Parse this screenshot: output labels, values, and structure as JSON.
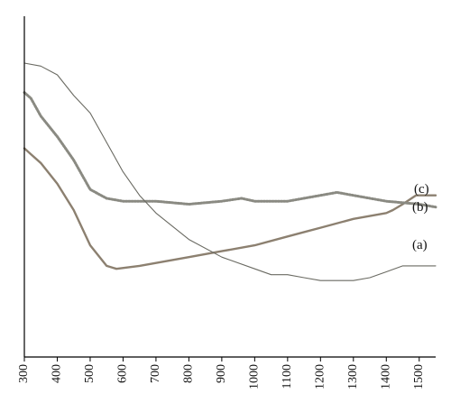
{
  "chart_data": {
    "type": "line",
    "title": "",
    "xlabel": "",
    "ylabel": "",
    "xlim": [
      300,
      1550
    ],
    "ylim": [
      0,
      1
    ],
    "grid": false,
    "legend": "none",
    "x_ticks": [
      300,
      400,
      500,
      600,
      700,
      800,
      900,
      1000,
      1100,
      1200,
      1300,
      1400,
      1500
    ],
    "x_tick_labels": [
      "300",
      "400",
      "500",
      "600",
      "700",
      "800",
      "900",
      "1000",
      "1100",
      "1200",
      "1300",
      "1400",
      "1500"
    ],
    "series": [
      {
        "name": "(a)",
        "color": "#8c8070",
        "style": "solid-thick",
        "x": [
          300,
          320,
          350,
          400,
          450,
          500,
          550,
          580,
          650,
          700,
          800,
          900,
          1000,
          1100,
          1200,
          1300,
          1400,
          1420,
          1450,
          1490,
          1550
        ],
        "y": [
          0.71,
          0.69,
          0.66,
          0.59,
          0.5,
          0.38,
          0.31,
          0.3,
          0.31,
          0.32,
          0.34,
          0.36,
          0.38,
          0.41,
          0.44,
          0.47,
          0.49,
          0.5,
          0.52,
          0.55,
          0.55
        ]
      },
      {
        "name": "(b)",
        "color": "#8a8a82",
        "style": "dotted",
        "x": [
          300,
          320,
          350,
          400,
          450,
          500,
          550,
          600,
          700,
          800,
          900,
          960,
          1000,
          1100,
          1200,
          1250,
          1300,
          1400,
          1500,
          1550
        ],
        "y": [
          0.9,
          0.88,
          0.82,
          0.75,
          0.67,
          0.57,
          0.54,
          0.53,
          0.53,
          0.52,
          0.53,
          0.54,
          0.53,
          0.53,
          0.55,
          0.56,
          0.55,
          0.53,
          0.52,
          0.51
        ]
      },
      {
        "name": "(c)",
        "color": "#6a6a62",
        "style": "solid-thin",
        "x": [
          300,
          350,
          400,
          450,
          500,
          550,
          600,
          650,
          700,
          800,
          900,
          1000,
          1050,
          1100,
          1150,
          1200,
          1250,
          1300,
          1350,
          1400,
          1450,
          1500,
          1550
        ],
        "y": [
          1.0,
          0.99,
          0.96,
          0.89,
          0.83,
          0.73,
          0.63,
          0.55,
          0.49,
          0.4,
          0.34,
          0.3,
          0.28,
          0.28,
          0.27,
          0.26,
          0.26,
          0.26,
          0.27,
          0.29,
          0.31,
          0.31,
          0.31
        ]
      }
    ],
    "annotations": [
      "(c)",
      "(b)",
      "(a)"
    ]
  }
}
